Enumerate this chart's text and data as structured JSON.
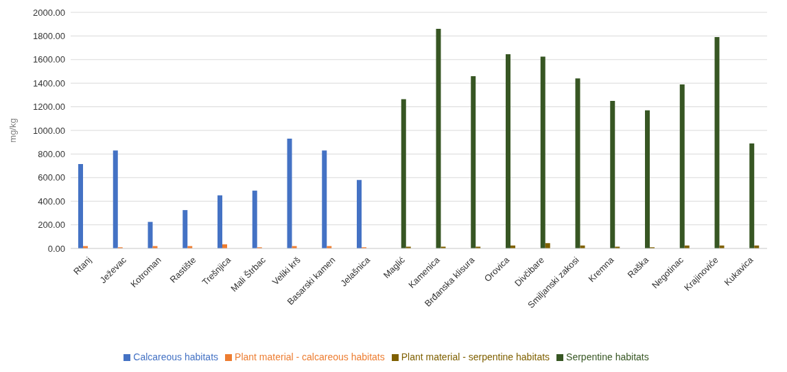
{
  "chart_data": {
    "type": "bar",
    "ylabel": "mg/kg",
    "categories": [
      "Rtanj",
      "Ježevac",
      "Kotroman",
      "Rastište",
      "Trešnjica",
      "Mali Štrbac",
      "Veliki krš",
      "Basarski kamen",
      "Jelašnica",
      "Maglić",
      "Kamenica",
      "Brđanska klisura",
      "Orovica",
      "Divčibare",
      "Smiljanski zakosi",
      "Kremna",
      "Raška",
      "Negotinac",
      "Krajinoviće",
      "Kukavica"
    ],
    "series": [
      {
        "name": "Calcareous habitats",
        "color": "#4472c4",
        "values": [
          715,
          830,
          225,
          325,
          450,
          490,
          930,
          830,
          580,
          null,
          null,
          null,
          null,
          null,
          null,
          null,
          null,
          null,
          null,
          null
        ]
      },
      {
        "name": "Plant material - calcareous habitats",
        "color": "#ed7d31",
        "values": [
          20,
          10,
          20,
          20,
          35,
          10,
          20,
          20,
          10,
          null,
          null,
          null,
          null,
          null,
          null,
          null,
          null,
          null,
          null,
          null
        ]
      },
      {
        "name": "Serpentine habitats",
        "color": "#375623",
        "values": [
          null,
          null,
          null,
          null,
          null,
          null,
          null,
          null,
          null,
          1265,
          1860,
          1460,
          1645,
          1625,
          1440,
          1250,
          1170,
          1390,
          1790,
          890
        ]
      },
      {
        "name": "Plant material - serpentine habitats",
        "color": "#7f6000",
        "values": [
          null,
          null,
          null,
          null,
          null,
          null,
          null,
          null,
          null,
          15,
          15,
          15,
          25,
          45,
          25,
          15,
          10,
          25,
          25,
          25
        ]
      }
    ],
    "ylim": [
      0,
      2000
    ],
    "yticks": [
      {
        "value": 0,
        "label": "0.00"
      },
      {
        "value": 200,
        "label": "200.00"
      },
      {
        "value": 400,
        "label": "400.00"
      },
      {
        "value": 600,
        "label": "600.00"
      },
      {
        "value": 800,
        "label": "800.00"
      },
      {
        "value": 1000,
        "label": "1000.00"
      },
      {
        "value": 1200,
        "label": "1200.00"
      },
      {
        "value": 1400,
        "label": "1400.00"
      },
      {
        "value": 1600,
        "label": "1600.00"
      },
      {
        "value": 1800,
        "label": "1800.00"
      },
      {
        "value": 2000,
        "label": "2000.00"
      }
    ],
    "grid": "y",
    "legend": "bottom"
  }
}
